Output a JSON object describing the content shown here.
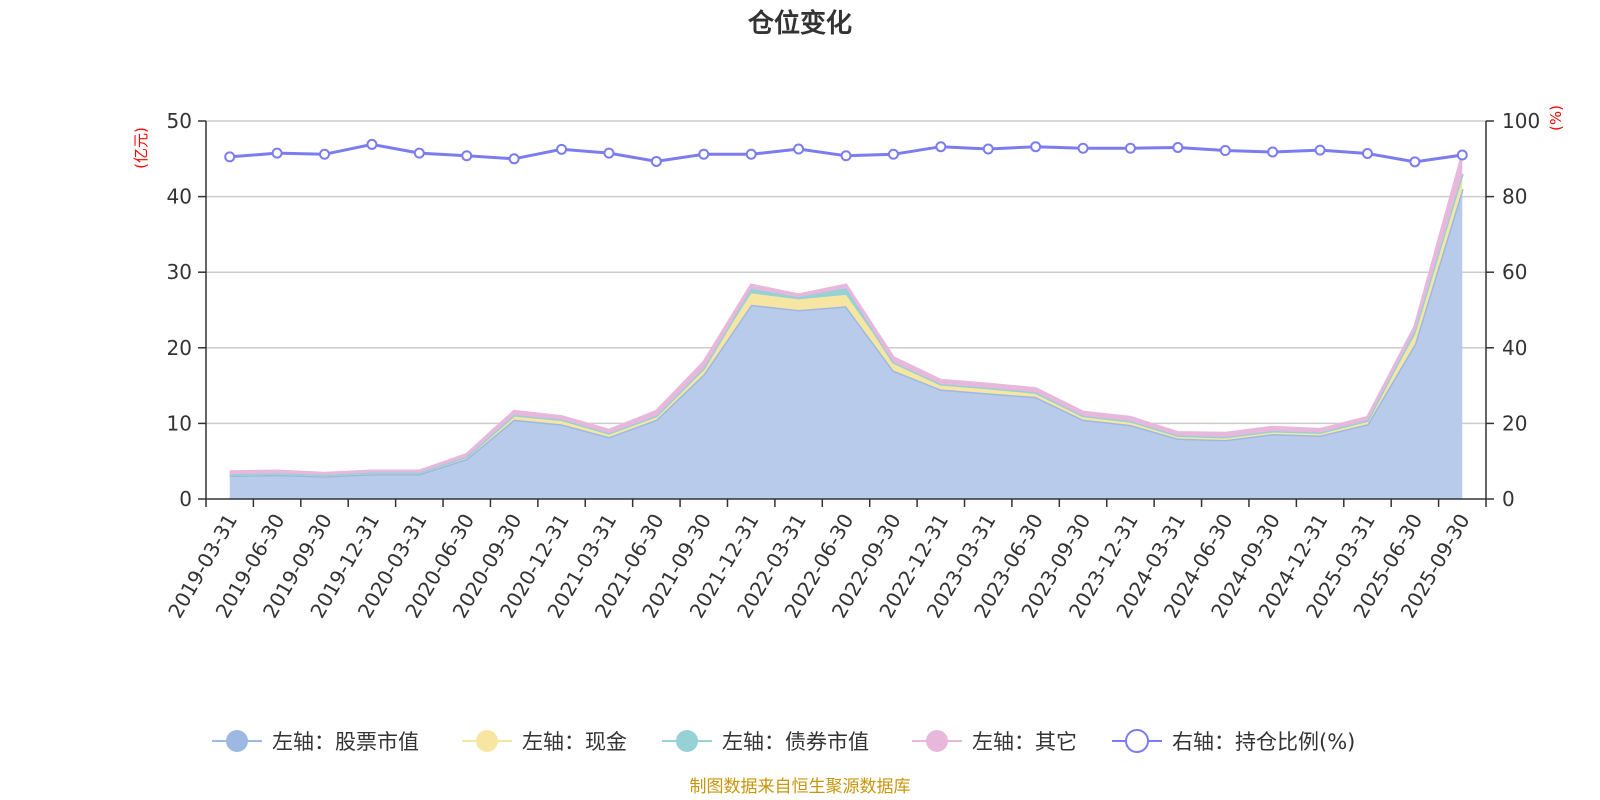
{
  "chart_data": {
    "type": "area",
    "title": "仓位变化",
    "left_axis_unit": "(亿元)",
    "right_axis_unit": "(%)",
    "y_left_range": [
      0,
      50
    ],
    "y_left_ticks": [
      "0",
      "10",
      "20",
      "30",
      "40",
      "50"
    ],
    "y_right_range": [
      0,
      100
    ],
    "y_right_ticks": [
      "0",
      "20",
      "40",
      "60",
      "80",
      "100"
    ],
    "grid": true,
    "legend_position": "bottom",
    "x": [
      "2019-03-31",
      "2019-06-30",
      "2019-09-30",
      "2019-12-31",
      "2020-03-31",
      "2020-06-30",
      "2020-09-30",
      "2020-12-31",
      "2021-03-31",
      "2021-06-30",
      "2021-09-30",
      "2021-12-31",
      "2022-03-31",
      "2022-06-30",
      "2022-09-30",
      "2022-12-31",
      "2023-03-31",
      "2023-06-30",
      "2023-09-30",
      "2023-12-31",
      "2024-03-31",
      "2024-06-30",
      "2024-09-30",
      "2024-12-31",
      "2025-03-31",
      "2025-06-30",
      "2025-09-30"
    ],
    "series": [
      {
        "name": "左轴：股票市值",
        "axis": "left",
        "stacked": true,
        "color": "#9db8e2",
        "fill": "#b8cbea",
        "values": [
          3.1,
          3.2,
          3.0,
          3.3,
          3.3,
          5.3,
          10.5,
          9.9,
          8.2,
          10.5,
          16.5,
          25.7,
          25.0,
          25.5,
          17.0,
          14.5,
          14.0,
          13.5,
          10.5,
          9.8,
          8.0,
          7.8,
          8.6,
          8.4,
          9.9,
          20.5,
          41.0
        ]
      },
      {
        "name": "左轴：现金",
        "axis": "left",
        "stacked": true,
        "color": "#f7e6a2",
        "fill": "#f7e6a2",
        "values": [
          0.2,
          0.2,
          0.2,
          0.2,
          0.2,
          0.3,
          0.6,
          0.6,
          0.5,
          0.5,
          0.8,
          1.5,
          1.4,
          1.5,
          1.1,
          0.7,
          0.7,
          0.6,
          0.5,
          0.5,
          0.4,
          0.4,
          0.4,
          0.4,
          0.5,
          1.2,
          2.0
        ]
      },
      {
        "name": "左轴：债券市值",
        "axis": "left",
        "stacked": true,
        "color": "#96d1d6",
        "fill": "#96d1d6",
        "values": [
          0,
          0,
          0,
          0,
          0,
          0,
          0,
          0,
          0,
          0,
          0,
          0.6,
          0.3,
          0.9,
          0,
          0,
          0,
          0,
          0,
          0,
          0,
          0,
          0,
          0,
          0,
          0.6,
          0
        ]
      },
      {
        "name": "左轴：其它",
        "axis": "left",
        "stacked": true,
        "color": "#e8b7dc",
        "fill": "#e8b7dc",
        "values": [
          0.3,
          0.3,
          0.2,
          0.2,
          0.2,
          0.3,
          0.5,
          0.4,
          0.4,
          0.6,
          0.8,
          0.5,
          0.3,
          0.4,
          0.6,
          0.5,
          0.5,
          0.5,
          0.5,
          0.5,
          0.4,
          0.5,
          0.5,
          0.4,
          0.4,
          0.5,
          2.5
        ]
      },
      {
        "name": "右轴：持仓比例(%)",
        "axis": "right",
        "stacked": false,
        "color": "#7b7cf0",
        "values": [
          90.5,
          91.5,
          91.2,
          93.8,
          91.5,
          90.8,
          90.0,
          92.5,
          91.5,
          89.3,
          91.2,
          91.2,
          92.6,
          90.8,
          91.2,
          93.2,
          92.6,
          93.2,
          92.8,
          92.8,
          93.0,
          92.2,
          91.8,
          92.3,
          91.4,
          89.2,
          91.0
        ]
      }
    ],
    "source_note": "制图数据来自恒生聚源数据库"
  }
}
